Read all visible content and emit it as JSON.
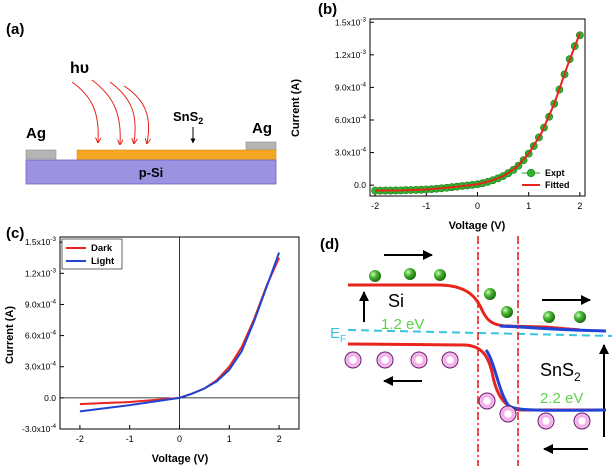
{
  "panel_a": {
    "label": "(a)",
    "light": "hυ",
    "film": "SnS2",
    "film_base": "SnS",
    "film_sub": "2",
    "contact_left": "Ag",
    "contact_right": "Ag",
    "substrate": "p-Si"
  },
  "panel_d": {
    "label": "(d)",
    "si": "Si",
    "si_gap": "1.2 eV",
    "fermi": "E",
    "fermi_sub": "F",
    "sns2_base": "SnS",
    "sns2_sub": "2",
    "sns2_gap": "2.2 eV"
  },
  "chart_data": [
    {
      "panel": "(b)",
      "type": "scatter",
      "xlabel": "Voltage (V)",
      "ylabel": "Current (A)",
      "xlim": [
        -2.1,
        2.1
      ],
      "ylim": [
        -0.0001,
        0.00153
      ],
      "xticks": [
        -2,
        -1,
        0,
        1,
        2
      ],
      "xtick_labels": [
        "-2",
        "-1",
        "0",
        "1",
        "2"
      ],
      "yticks": [
        0,
        0.0003,
        0.0006,
        0.0009,
        0.0012,
        0.0015
      ],
      "ytick_labels": [
        "0.0",
        "3.0x10-4",
        "6.0x10-4",
        "9.0x10-4",
        "1.2x10-3",
        "1.5x10-3"
      ],
      "legend": "bottom-right",
      "series": [
        {
          "name": "Expt",
          "style": "markers",
          "color": "#1fa11f",
          "x": [
            -2.0,
            -1.9,
            -1.8,
            -1.7,
            -1.6,
            -1.5,
            -1.4,
            -1.3,
            -1.2,
            -1.1,
            -1.0,
            -0.9,
            -0.8,
            -0.7,
            -0.6,
            -0.5,
            -0.4,
            -0.3,
            -0.2,
            -0.1,
            0.0,
            0.1,
            0.2,
            0.3,
            0.4,
            0.5,
            0.6,
            0.7,
            0.8,
            0.9,
            1.0,
            1.1,
            1.2,
            1.3,
            1.4,
            1.5,
            1.6,
            1.7,
            1.8,
            1.9,
            2.0
          ],
          "y": [
            -5e-05,
            -5e-05,
            -5e-05,
            -5e-05,
            -4.9e-05,
            -4.8e-05,
            -4.6e-05,
            -4.5e-05,
            -4.4e-05,
            -4.2e-05,
            -4e-05,
            -3.7e-05,
            -3.3e-05,
            -2.9e-05,
            -2.4e-05,
            -1.9e-05,
            -1.4e-05,
            -8e-06,
            -3e-06,
            2e-06,
            8e-06,
            1.8e-05,
            3e-05,
            4.5e-05,
            6.2e-05,
            8.3e-05,
            0.00011,
            0.00014,
            0.00018,
            0.00023,
            0.00029,
            0.00036,
            0.00044,
            0.00053,
            0.00063,
            0.00075,
            0.00088,
            0.00102,
            0.00116,
            0.00128,
            0.00138
          ]
        },
        {
          "name": "Fitted",
          "style": "line",
          "color": "#e8241c",
          "x": [
            -2.0,
            -1.5,
            -1.0,
            -0.5,
            0.0,
            0.25,
            0.5,
            0.75,
            1.0,
            1.25,
            1.5,
            1.75,
            2.0
          ],
          "y": [
            -5e-05,
            -4.8e-05,
            -4e-05,
            -1.9e-05,
            8e-06,
            3.8e-05,
            8.3e-05,
            0.00016,
            0.00029,
            0.00048,
            0.00075,
            0.00109,
            0.0014
          ]
        }
      ]
    },
    {
      "panel": "(c)",
      "type": "line",
      "xlabel": "Voltage (V)",
      "ylabel": "Current (A)",
      "xlim": [
        -2.4,
        2.4
      ],
      "ylim": [
        -0.0003,
        0.00155
      ],
      "xticks": [
        -2,
        -1,
        0,
        1,
        2
      ],
      "xtick_labels": [
        "-2",
        "-1",
        "0",
        "1",
        "2"
      ],
      "yticks": [
        -0.0003,
        0,
        0.0003,
        0.0006,
        0.0009,
        0.0012,
        0.0015
      ],
      "ytick_labels": [
        "-3.0x10-4",
        "0.0",
        "3.0x10-4",
        "6.0x10-4",
        "9.0x10-4",
        "1.2x10-3",
        "1.5x10-3"
      ],
      "legend": "top-left",
      "series": [
        {
          "name": "Dark",
          "color": "#e8241c",
          "x": [
            -2.0,
            -1.5,
            -1.0,
            -0.5,
            0.0,
            0.25,
            0.5,
            0.75,
            1.0,
            1.25,
            1.5,
            1.75,
            2.0
          ],
          "y": [
            -6e-05,
            -5e-05,
            -4e-05,
            -2e-05,
            0.0,
            4e-05,
            9e-05,
            0.00017,
            0.0003,
            0.00049,
            0.00076,
            0.00108,
            0.00135
          ]
        },
        {
          "name": "Light",
          "color": "#2143d6",
          "x": [
            -2.0,
            -1.5,
            -1.0,
            -0.5,
            0.0,
            0.25,
            0.5,
            0.75,
            1.0,
            1.25,
            1.5,
            1.75,
            2.0
          ],
          "y": [
            -0.00013,
            -0.0001,
            -7e-05,
            -3.5e-05,
            0.0,
            4e-05,
            9e-05,
            0.00016,
            0.00027,
            0.00045,
            0.00074,
            0.00107,
            0.0014
          ]
        }
      ]
    }
  ]
}
